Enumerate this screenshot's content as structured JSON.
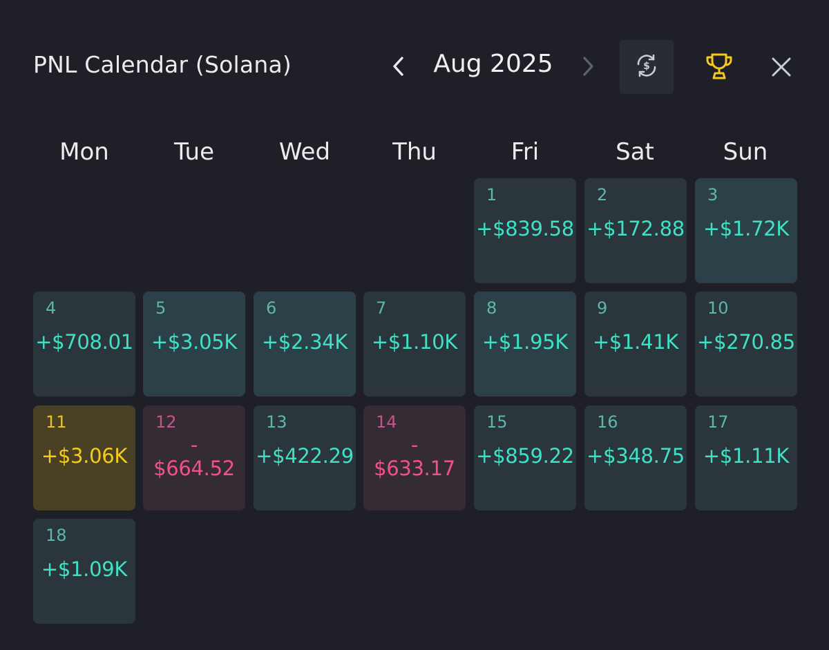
{
  "header": {
    "title": "PNL Calendar (Solana)",
    "month": "Aug 2025"
  },
  "icons": {
    "prev": "chevron-left-icon",
    "next": "chevron-right-icon",
    "currency": "currency-swap-icon",
    "trophy": "trophy-icon",
    "close": "close-icon"
  },
  "colors": {
    "background": "#1f2027",
    "positive": "#3fe0c6",
    "negative": "#f0508d",
    "best_day": "#f5cb1b"
  },
  "weekdays": [
    "Mon",
    "Tue",
    "Wed",
    "Thu",
    "Fri",
    "Sat",
    "Sun"
  ],
  "days": [
    {
      "day": "1",
      "pnl": "+$839.58",
      "status": "positive"
    },
    {
      "day": "2",
      "pnl": "+$172.88",
      "status": "positive"
    },
    {
      "day": "3",
      "pnl": "+$1.72K",
      "status": "positive-strong"
    },
    {
      "day": "4",
      "pnl": "+$708.01",
      "status": "positive"
    },
    {
      "day": "5",
      "pnl": "+$3.05K",
      "status": "positive-strong"
    },
    {
      "day": "6",
      "pnl": "+$2.34K",
      "status": "positive-strong"
    },
    {
      "day": "7",
      "pnl": "+$1.10K",
      "status": "positive"
    },
    {
      "day": "8",
      "pnl": "+$1.95K",
      "status": "positive-strong"
    },
    {
      "day": "9",
      "pnl": "+$1.41K",
      "status": "positive"
    },
    {
      "day": "10",
      "pnl": "+$270.85",
      "status": "positive"
    },
    {
      "day": "11",
      "pnl": "+$3.06K",
      "status": "best"
    },
    {
      "day": "12",
      "pnl": "-\n$664.52",
      "status": "negative"
    },
    {
      "day": "13",
      "pnl": "+$422.29",
      "status": "positive"
    },
    {
      "day": "14",
      "pnl": "-\n$633.17",
      "status": "negative"
    },
    {
      "day": "15",
      "pnl": "+$859.22",
      "status": "positive"
    },
    {
      "day": "16",
      "pnl": "+$348.75",
      "status": "positive"
    },
    {
      "day": "17",
      "pnl": "+$1.11K",
      "status": "positive"
    },
    {
      "day": "18",
      "pnl": "+$1.09K",
      "status": "positive"
    }
  ]
}
